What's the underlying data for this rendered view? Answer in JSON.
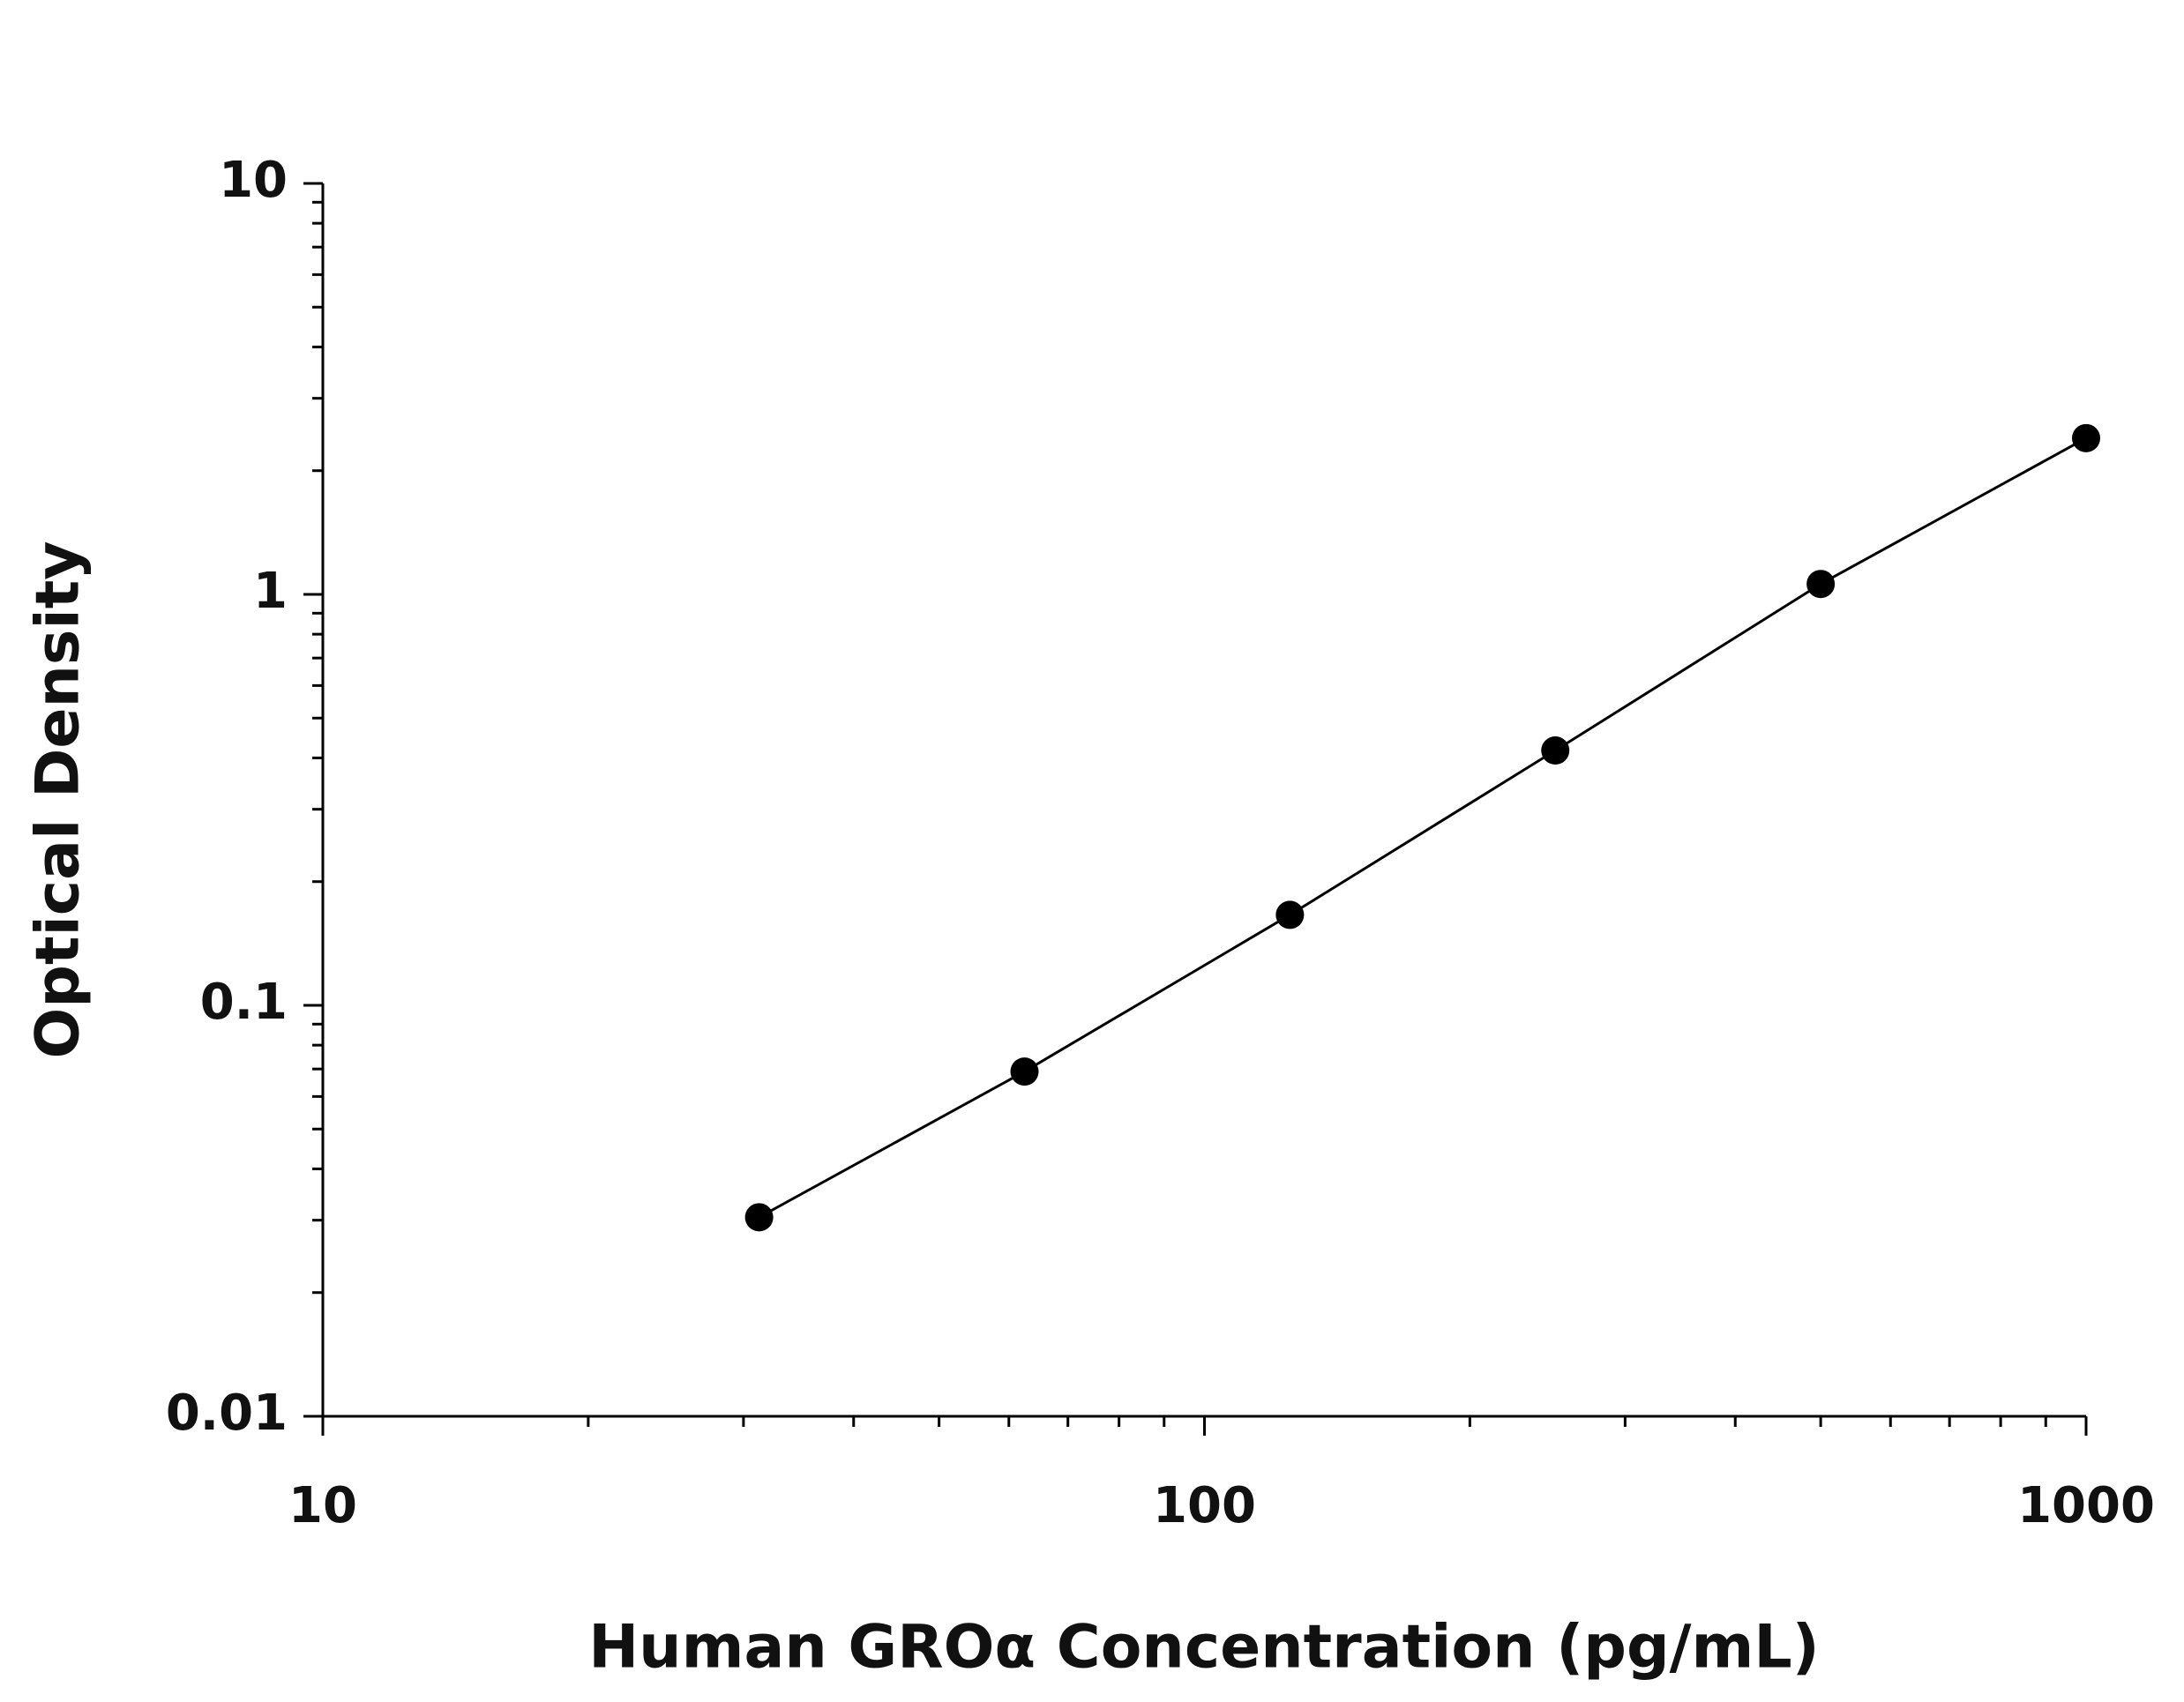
{
  "chart_data": {
    "type": "scatter",
    "x_label": "Human GROα Concentration (pg/mL)",
    "y_label": "Optical Density",
    "x": [
      31.25,
      62.5,
      125,
      250,
      500,
      1000
    ],
    "series": [
      {
        "color": "#000000",
        "values": [
          0.0305,
          0.069,
          0.166,
          0.417,
          1.06,
          2.4
        ]
      }
    ],
    "line": true,
    "xlim": [
      10,
      1000
    ],
    "ylim": [
      0.01,
      10
    ],
    "xticks": [
      10,
      100,
      1000
    ],
    "yticks": [
      0.01,
      0.1,
      1,
      10
    ],
    "x_log": true,
    "y_log": true
  }
}
